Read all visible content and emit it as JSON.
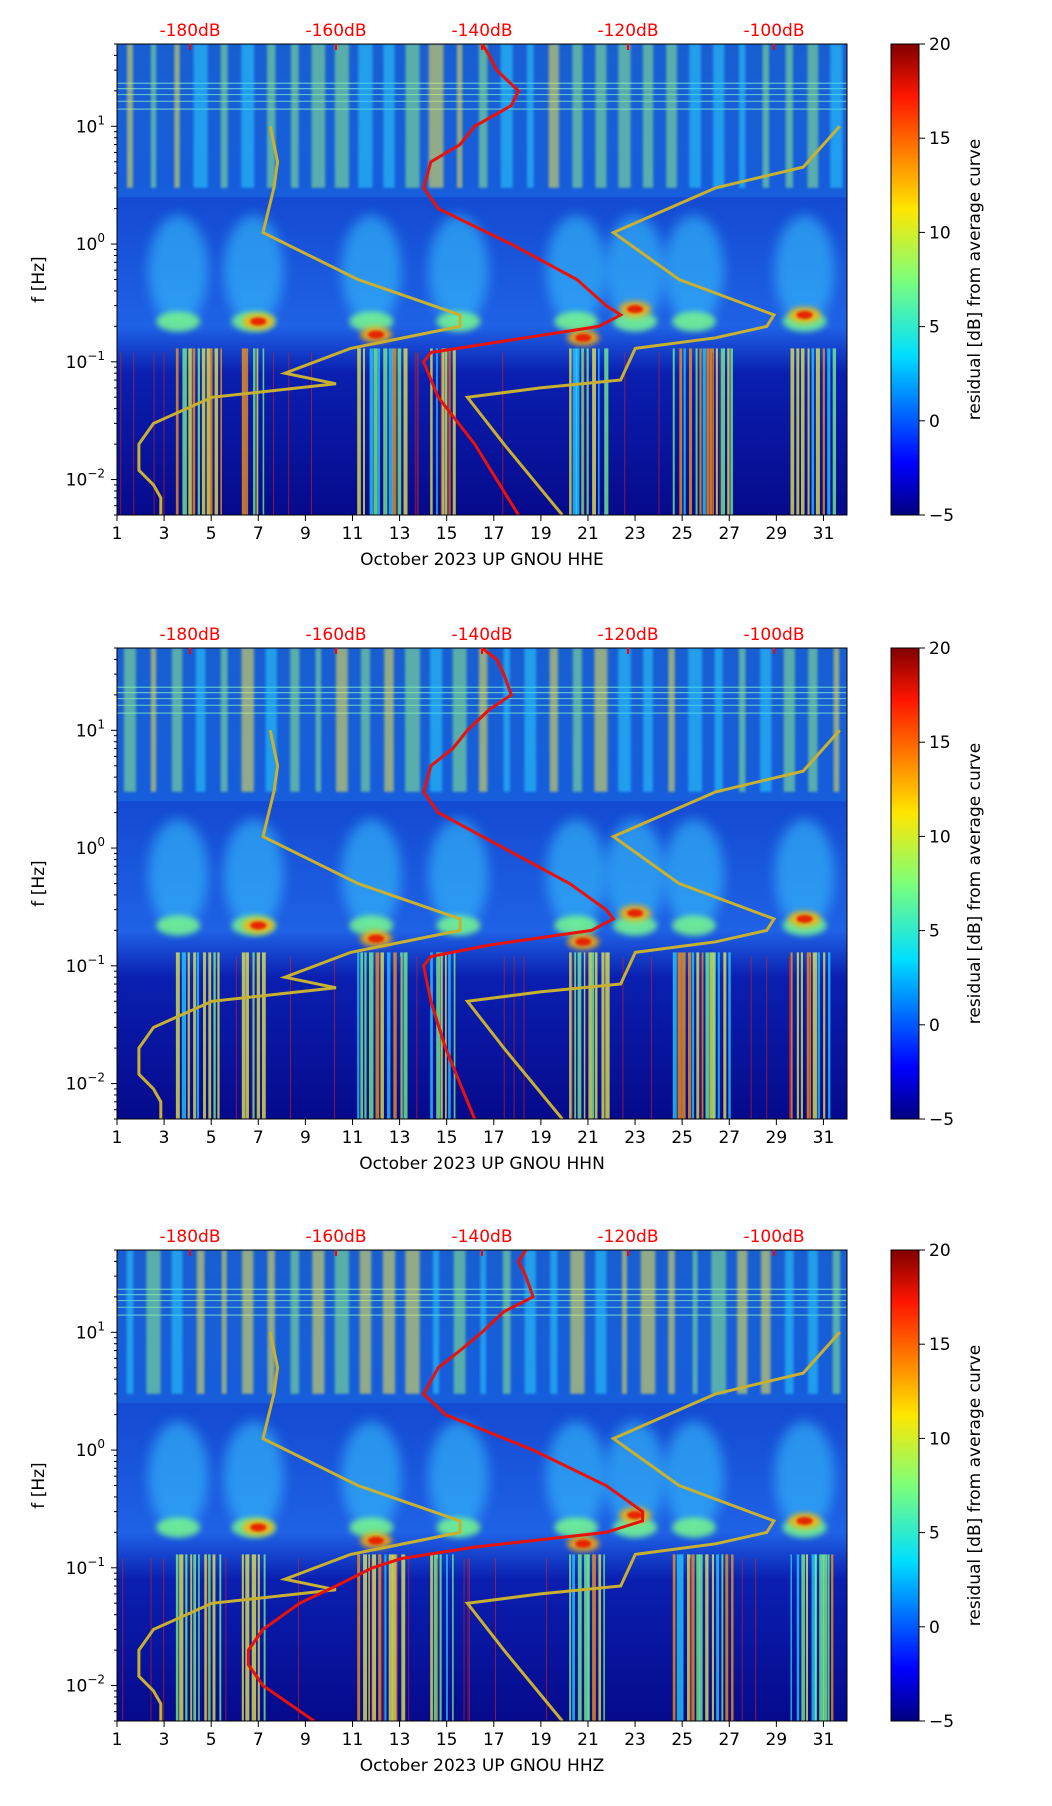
{
  "figure": {
    "shared": {
      "ylabel": "f [Hz]",
      "colorbar_label": "residual [dB] from average curve",
      "colorbar_ticks": [
        20,
        15,
        10,
        5,
        0,
        -5
      ],
      "colorbar_range": [
        -5,
        20
      ],
      "y_ticks": [
        {
          "value": 10,
          "base": "10",
          "exp": "1"
        },
        {
          "value": 1,
          "base": "10",
          "exp": "0"
        },
        {
          "value": 0.1,
          "base": "10",
          "exp": "−1"
        },
        {
          "value": 0.01,
          "base": "10",
          "exp": "−2"
        }
      ],
      "x_ticks": [
        "1",
        "3",
        "5",
        "7",
        "9",
        "11",
        "13",
        "15",
        "17",
        "19",
        "21",
        "23",
        "25",
        "27",
        "29",
        "31"
      ],
      "top_ticks": [
        "-180dB",
        "-160dB",
        "-140dB",
        "-120dB",
        "-100dB"
      ],
      "colors": {
        "top_axis": "#ff0000",
        "curve": "#e8120c",
        "noise_models": "#c8b030"
      }
    },
    "chart_data": [
      {
        "type": "heatmap",
        "title": "",
        "xlabel": "October 2023 UP GNOU  HHE",
        "ylabel": "f [Hz]",
        "x_range_days": [
          1,
          32
        ],
        "ylim_hz": [
          0.005,
          50
        ],
        "yscale": "log",
        "top_axis_db": [
          -180,
          -160,
          -140,
          -120,
          -100
        ],
        "colorbar_range_db": [
          -5,
          20
        ],
        "average_curve_db": [
          {
            "f": 50,
            "db": -140
          },
          {
            "f": 40,
            "db": -139
          },
          {
            "f": 30,
            "db": -138
          },
          {
            "f": 20,
            "db": -135
          },
          {
            "f": 15,
            "db": -136
          },
          {
            "f": 10,
            "db": -141
          },
          {
            "f": 7,
            "db": -143
          },
          {
            "f": 5,
            "db": -147
          },
          {
            "f": 3,
            "db": -148
          },
          {
            "f": 2,
            "db": -146
          },
          {
            "f": 1,
            "db": -136
          },
          {
            "f": 0.5,
            "db": -127
          },
          {
            "f": 0.3,
            "db": -123
          },
          {
            "f": 0.25,
            "db": -121
          },
          {
            "f": 0.2,
            "db": -124
          },
          {
            "f": 0.15,
            "db": -137
          },
          {
            "f": 0.12,
            "db": -147
          },
          {
            "f": 0.1,
            "db": -148
          },
          {
            "f": 0.05,
            "db": -146
          },
          {
            "f": 0.02,
            "db": -141
          },
          {
            "f": 0.01,
            "db": -138
          },
          {
            "f": 0.005,
            "db": -135
          }
        ]
      },
      {
        "type": "heatmap",
        "title": "",
        "xlabel": "October 2023 UP GNOU  HHN",
        "ylabel": "f [Hz]",
        "x_range_days": [
          1,
          32
        ],
        "ylim_hz": [
          0.005,
          50
        ],
        "yscale": "log",
        "top_axis_db": [
          -180,
          -160,
          -140,
          -120,
          -100
        ],
        "colorbar_range_db": [
          -5,
          20
        ],
        "average_curve_db": [
          {
            "f": 50,
            "db": -140
          },
          {
            "f": 40,
            "db": -138
          },
          {
            "f": 30,
            "db": -137
          },
          {
            "f": 20,
            "db": -136
          },
          {
            "f": 15,
            "db": -139
          },
          {
            "f": 10,
            "db": -142
          },
          {
            "f": 7,
            "db": -144
          },
          {
            "f": 5,
            "db": -147
          },
          {
            "f": 3,
            "db": -148
          },
          {
            "f": 2,
            "db": -146
          },
          {
            "f": 1,
            "db": -137
          },
          {
            "f": 0.5,
            "db": -128
          },
          {
            "f": 0.3,
            "db": -123
          },
          {
            "f": 0.25,
            "db": -122
          },
          {
            "f": 0.2,
            "db": -125
          },
          {
            "f": 0.15,
            "db": -139
          },
          {
            "f": 0.12,
            "db": -147
          },
          {
            "f": 0.1,
            "db": -148
          },
          {
            "f": 0.05,
            "db": -147
          },
          {
            "f": 0.02,
            "db": -145
          },
          {
            "f": 0.01,
            "db": -143
          },
          {
            "f": 0.005,
            "db": -141
          }
        ]
      },
      {
        "type": "heatmap",
        "title": "",
        "xlabel": "October 2023 UP GNOU  HHZ",
        "ylabel": "f [Hz]",
        "x_range_days": [
          1,
          32
        ],
        "ylim_hz": [
          0.005,
          50
        ],
        "yscale": "log",
        "top_axis_db": [
          -180,
          -160,
          -140,
          -120,
          -100
        ],
        "colorbar_range_db": [
          -5,
          20
        ],
        "average_curve_db": [
          {
            "f": 50,
            "db": -134
          },
          {
            "f": 40,
            "db": -135
          },
          {
            "f": 30,
            "db": -134
          },
          {
            "f": 20,
            "db": -133
          },
          {
            "f": 15,
            "db": -137
          },
          {
            "f": 10,
            "db": -140
          },
          {
            "f": 7,
            "db": -143
          },
          {
            "f": 5,
            "db": -146
          },
          {
            "f": 3,
            "db": -148
          },
          {
            "f": 2,
            "db": -145
          },
          {
            "f": 1,
            "db": -133
          },
          {
            "f": 0.5,
            "db": -123
          },
          {
            "f": 0.3,
            "db": -118
          },
          {
            "f": 0.25,
            "db": -118
          },
          {
            "f": 0.2,
            "db": -123
          },
          {
            "f": 0.15,
            "db": -141
          },
          {
            "f": 0.12,
            "db": -151
          },
          {
            "f": 0.1,
            "db": -155
          },
          {
            "f": 0.07,
            "db": -160
          },
          {
            "f": 0.05,
            "db": -165
          },
          {
            "f": 0.03,
            "db": -170
          },
          {
            "f": 0.02,
            "db": -172
          },
          {
            "f": 0.015,
            "db": -172
          },
          {
            "f": 0.01,
            "db": -170
          },
          {
            "f": 0.005,
            "db": -163
          }
        ]
      }
    ],
    "noise_models": {
      "nlnm": [
        {
          "f": 10,
          "db": -169
        },
        {
          "f": 5,
          "db": -168
        },
        {
          "f": 3,
          "db": -168.5
        },
        {
          "f": 1.25,
          "db": -170
        },
        {
          "f": 0.5,
          "db": -157
        },
        {
          "f": 0.25,
          "db": -143
        },
        {
          "f": 0.2,
          "db": -143
        },
        {
          "f": 0.13,
          "db": -158
        },
        {
          "f": 0.08,
          "db": -167
        },
        {
          "f": 0.065,
          "db": -160
        },
        {
          "f": 0.05,
          "db": -177
        },
        {
          "f": 0.03,
          "db": -185
        },
        {
          "f": 0.02,
          "db": -187
        },
        {
          "f": 0.012,
          "db": -187
        },
        {
          "f": 0.009,
          "db": -185
        },
        {
          "f": 0.007,
          "db": -184
        },
        {
          "f": 0.005,
          "db": -184
        }
      ],
      "nhnm": [
        {
          "f": 10,
          "db": -91
        },
        {
          "f": 4.5,
          "db": -96
        },
        {
          "f": 3,
          "db": -108
        },
        {
          "f": 1.25,
          "db": -122
        },
        {
          "f": 0.5,
          "db": -113
        },
        {
          "f": 0.25,
          "db": -100
        },
        {
          "f": 0.2,
          "db": -101
        },
        {
          "f": 0.16,
          "db": -108
        },
        {
          "f": 0.13,
          "db": -119
        },
        {
          "f": 0.07,
          "db": -121
        },
        {
          "f": 0.06,
          "db": -132
        },
        {
          "f": 0.05,
          "db": -142
        },
        {
          "f": 0.02,
          "db": -137
        },
        {
          "f": 0.01,
          "db": -133
        },
        {
          "f": 0.005,
          "db": -129
        }
      ]
    }
  }
}
